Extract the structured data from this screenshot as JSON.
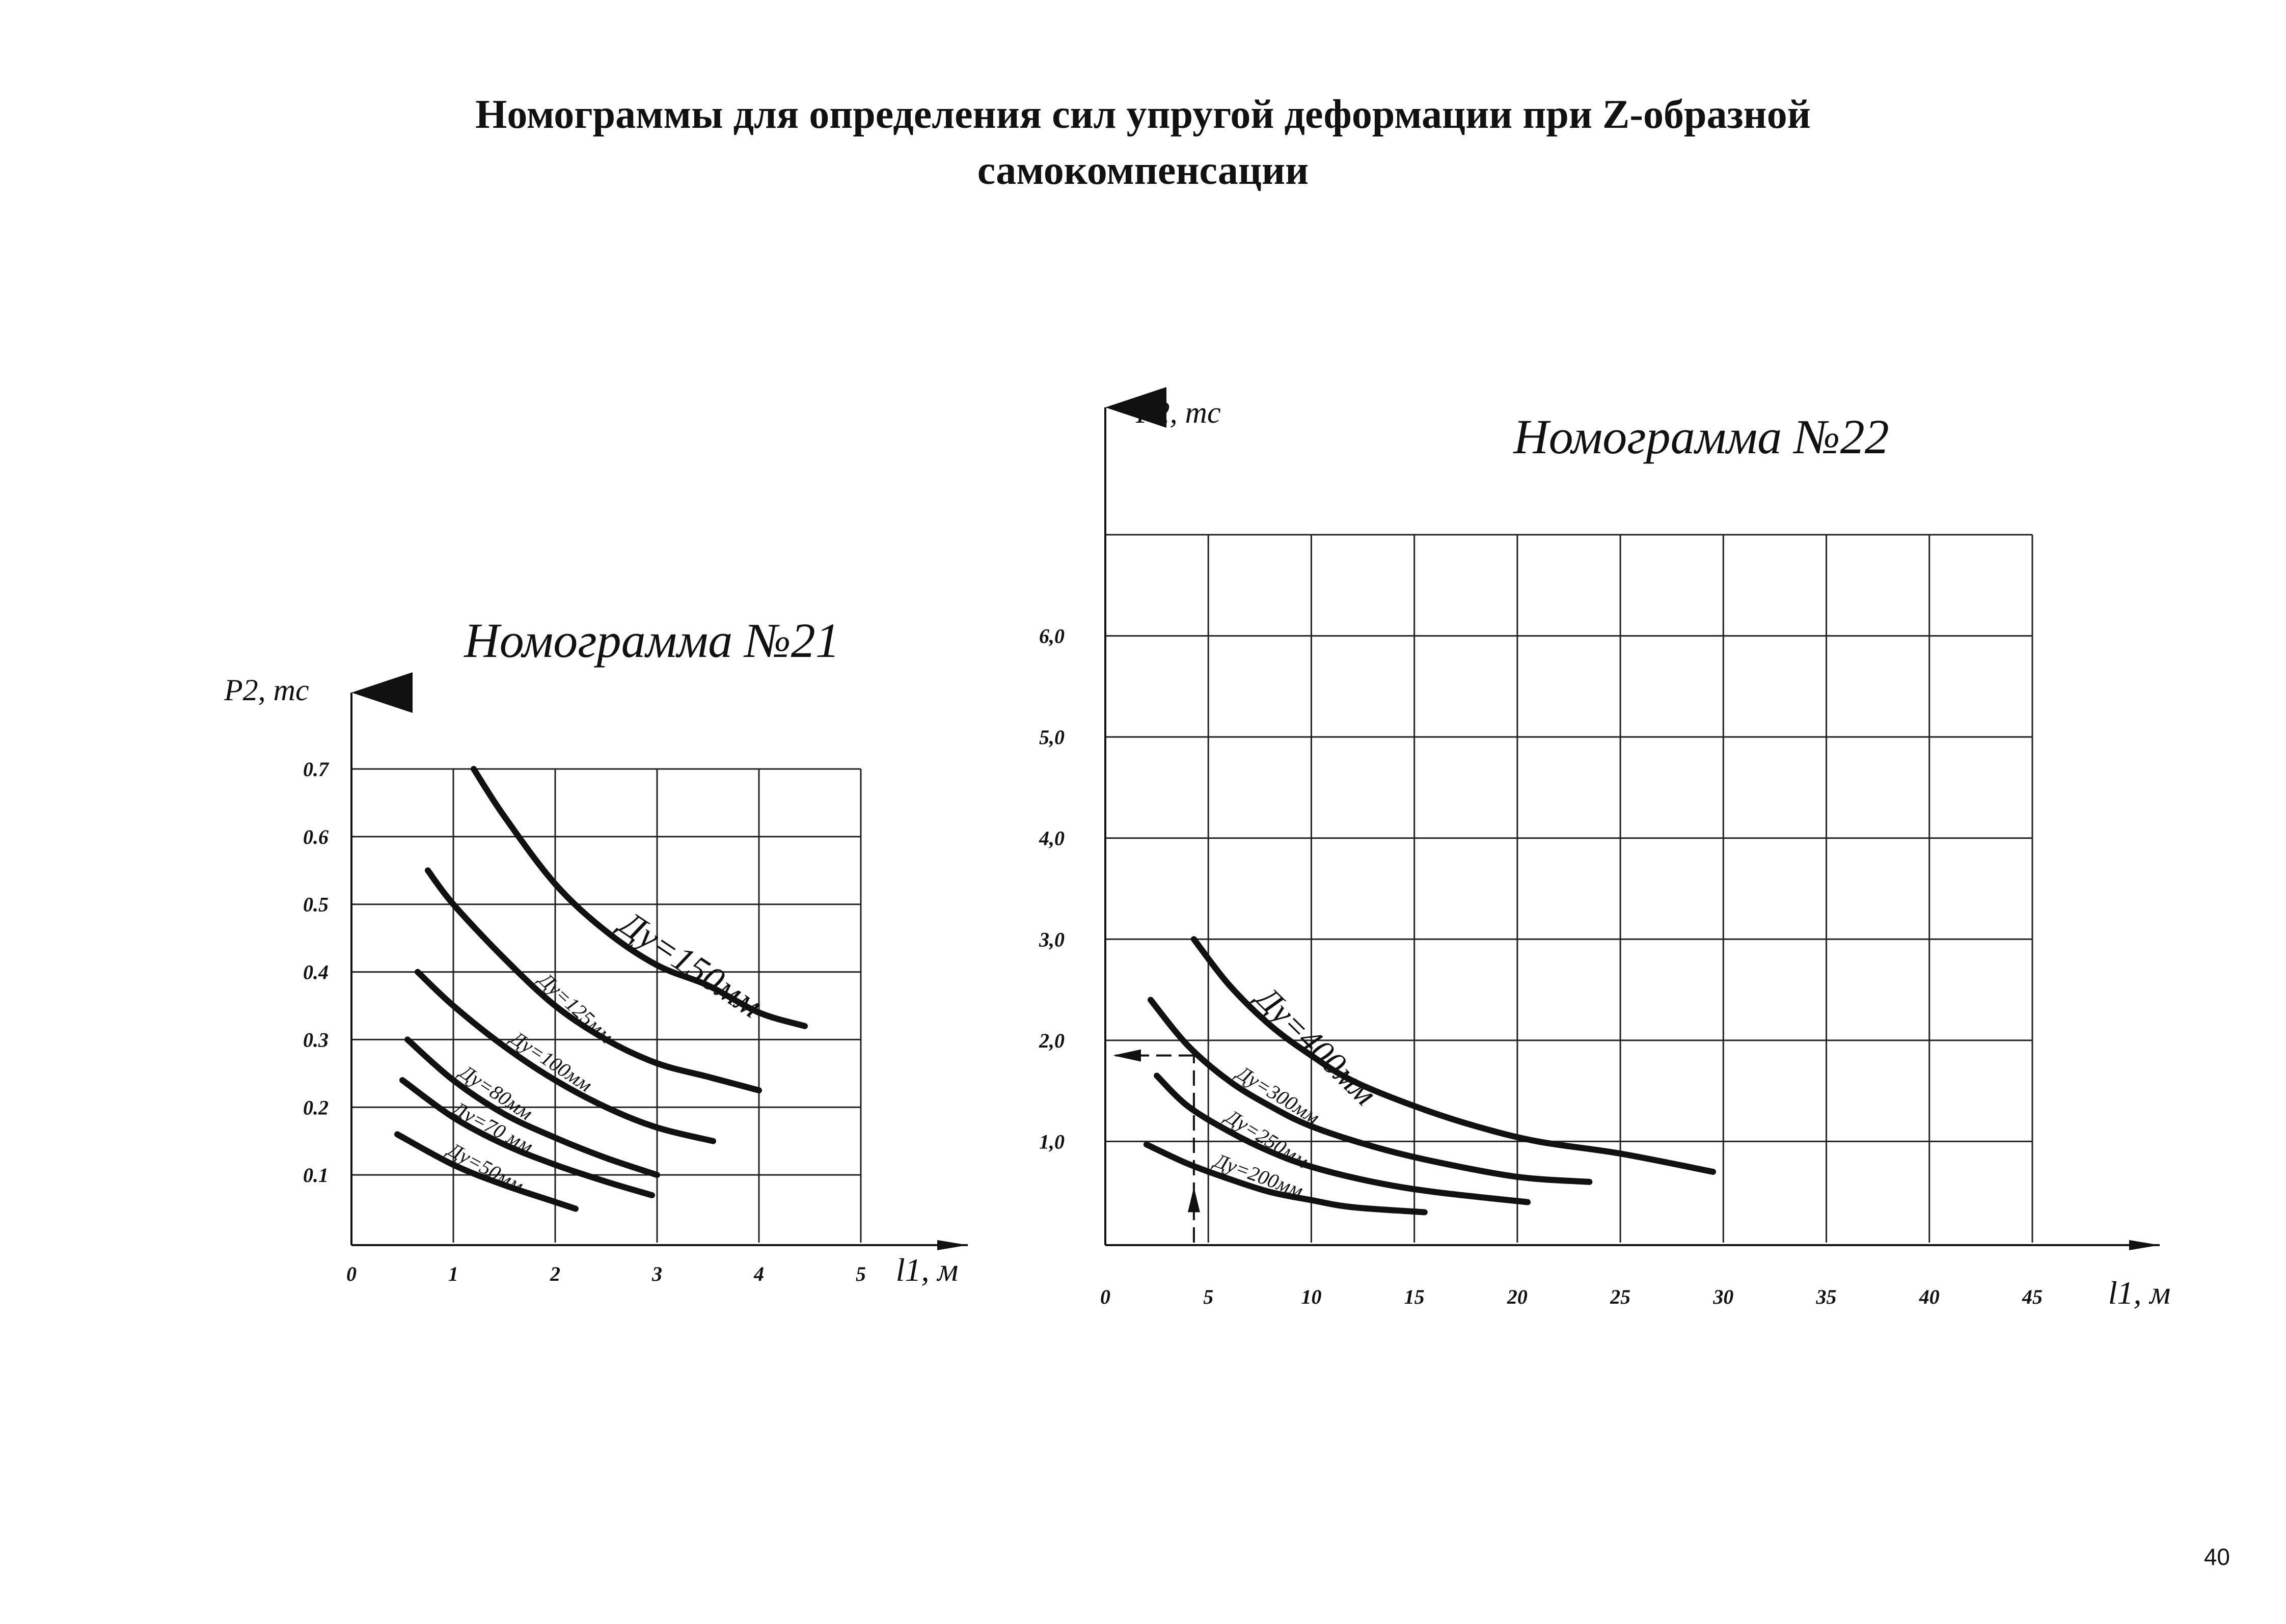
{
  "page": {
    "title_line1": "Номограммы для определения сил упругой деформации при Z-образной",
    "title_line2": "самокомпенсации",
    "page_number": "40"
  },
  "chart_data": [
    {
      "type": "line",
      "title": "Номограмма №21",
      "xlabel": "l1, м",
      "ylabel": "P2, тс",
      "xlim": [
        0,
        5
      ],
      "ylim": [
        0,
        0.7
      ],
      "x_ticks": [
        "0",
        "1",
        "2",
        "3",
        "4",
        "5"
      ],
      "y_ticks": [
        "0.1",
        "0.2",
        "0.3",
        "0.4",
        "0.5",
        "0.6",
        "0.7"
      ],
      "grid": true,
      "series": [
        {
          "name": "Ду=150мм",
          "points": [
            [
              1.2,
              0.7
            ],
            [
              1.5,
              0.63
            ],
            [
              2.0,
              0.53
            ],
            [
              2.5,
              0.46
            ],
            [
              3.0,
              0.41
            ],
            [
              3.5,
              0.38
            ],
            [
              4.0,
              0.34
            ],
            [
              4.45,
              0.32
            ]
          ]
        },
        {
          "name": "Ду=125мм",
          "points": [
            [
              0.75,
              0.55
            ],
            [
              1.0,
              0.5
            ],
            [
              1.5,
              0.42
            ],
            [
              2.0,
              0.35
            ],
            [
              2.5,
              0.3
            ],
            [
              3.0,
              0.265
            ],
            [
              3.5,
              0.245
            ],
            [
              4.0,
              0.225
            ]
          ]
        },
        {
          "name": "Ду=100мм",
          "points": [
            [
              0.65,
              0.4
            ],
            [
              1.0,
              0.35
            ],
            [
              1.5,
              0.29
            ],
            [
              2.0,
              0.24
            ],
            [
              2.5,
              0.2
            ],
            [
              3.0,
              0.17
            ],
            [
              3.55,
              0.15
            ]
          ]
        },
        {
          "name": "Ду=80мм",
          "points": [
            [
              0.55,
              0.3
            ],
            [
              1.0,
              0.24
            ],
            [
              1.5,
              0.19
            ],
            [
              2.0,
              0.155
            ],
            [
              2.5,
              0.125
            ],
            [
              3.0,
              0.1
            ]
          ]
        },
        {
          "name": "Ду=70 мм",
          "points": [
            [
              0.5,
              0.24
            ],
            [
              1.0,
              0.185
            ],
            [
              1.5,
              0.145
            ],
            [
              2.0,
              0.115
            ],
            [
              2.5,
              0.09
            ],
            [
              2.95,
              0.07
            ]
          ]
        },
        {
          "name": "Ду=50мм",
          "points": [
            [
              0.45,
              0.16
            ],
            [
              1.0,
              0.115
            ],
            [
              1.5,
              0.085
            ],
            [
              2.0,
              0.06
            ],
            [
              2.2,
              0.05
            ]
          ]
        }
      ]
    },
    {
      "type": "line",
      "title": "Номограмма №22",
      "xlabel": "l1, м",
      "ylabel": "P2, тс",
      "xlim": [
        0,
        45
      ],
      "ylim": [
        0,
        7.0
      ],
      "x_ticks": [
        "0",
        "5",
        "10",
        "15",
        "20",
        "25",
        "30",
        "35",
        "40",
        "45"
      ],
      "y_ticks": [
        "1,0",
        "2,0",
        "3,0",
        "4,0",
        "5,0",
        "6,0"
      ],
      "grid": true,
      "series": [
        {
          "name": "Ду=400мм",
          "points": [
            [
              4.3,
              3.0
            ],
            [
              6.0,
              2.55
            ],
            [
              8.0,
              2.15
            ],
            [
              10.0,
              1.85
            ],
            [
              12.0,
              1.6
            ],
            [
              15.0,
              1.35
            ],
            [
              18.0,
              1.15
            ],
            [
              21.0,
              1.0
            ],
            [
              25.0,
              0.88
            ],
            [
              29.5,
              0.7
            ]
          ]
        },
        {
          "name": "Ду=300мм",
          "points": [
            [
              2.2,
              2.4
            ],
            [
              4.0,
              1.95
            ],
            [
              6.0,
              1.6
            ],
            [
              8.0,
              1.35
            ],
            [
              10.0,
              1.15
            ],
            [
              13.0,
              0.95
            ],
            [
              16.0,
              0.8
            ],
            [
              20.0,
              0.65
            ],
            [
              23.5,
              0.6
            ]
          ]
        },
        {
          "name": "Ду=250мм",
          "points": [
            [
              2.5,
              1.65
            ],
            [
              4.0,
              1.35
            ],
            [
              6.0,
              1.1
            ],
            [
              8.0,
              0.9
            ],
            [
              10.0,
              0.75
            ],
            [
              13.0,
              0.6
            ],
            [
              16.0,
              0.5
            ],
            [
              20.5,
              0.4
            ]
          ]
        },
        {
          "name": "Ду=200мм",
          "points": [
            [
              2.0,
              0.97
            ],
            [
              4.0,
              0.78
            ],
            [
              6.0,
              0.63
            ],
            [
              8.0,
              0.5
            ],
            [
              10.0,
              0.42
            ],
            [
              12.0,
              0.35
            ],
            [
              15.5,
              0.3
            ]
          ]
        }
      ]
    }
  ]
}
